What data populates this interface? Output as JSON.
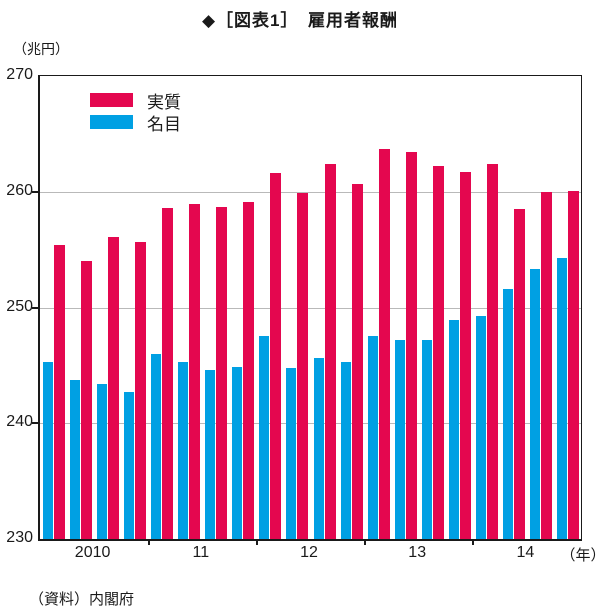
{
  "title": "◆［図表1］　雇用者報酬",
  "y_axis": {
    "unit_label": "（兆円）",
    "ticks": [
      270,
      260,
      250,
      240,
      230
    ],
    "gridlines": [
      260,
      250,
      240
    ]
  },
  "x_axis": {
    "year_labels": [
      "2010",
      "11",
      "12",
      "13",
      "14"
    ],
    "suffix_label": "（年）"
  },
  "legend": {
    "items": [
      {
        "label": "実質",
        "color": "#e4074f"
      },
      {
        "label": "名目",
        "color": "#00a0e3"
      }
    ]
  },
  "footer": "（資料）内閣府",
  "colors": {
    "real": "#e4074f",
    "nominal": "#00a0e3",
    "gridline": "#b9b9b9",
    "axis": "#1a1a1a"
  },
  "chart_data": {
    "type": "bar",
    "title": "雇用者報酬",
    "unit": "兆円",
    "ylim": [
      230,
      270
    ],
    "grid": "horizontal",
    "legend_position": "top-left-inside",
    "categories_years": [
      "2010",
      "11",
      "12",
      "13",
      "14"
    ],
    "bars_per_year": 4,
    "bar_order_in_pair": [
      "名目",
      "実質"
    ],
    "series": [
      {
        "name": "実質",
        "color": "#e4074f",
        "values": [
          255.4,
          254.0,
          256.1,
          255.7,
          258.6,
          258.9,
          258.7,
          259.1,
          261.6,
          259.9,
          262.4,
          260.7,
          263.7,
          263.4,
          262.2,
          261.7,
          262.4,
          258.5,
          260.0,
          260.1
        ]
      },
      {
        "name": "名目",
        "color": "#00a0e3",
        "values": [
          245.3,
          243.7,
          243.4,
          242.7,
          246.0,
          245.3,
          244.6,
          244.9,
          247.5,
          244.8,
          245.6,
          245.3,
          247.5,
          247.2,
          247.2,
          248.9,
          249.3,
          251.6,
          253.3,
          254.3
        ]
      }
    ]
  }
}
